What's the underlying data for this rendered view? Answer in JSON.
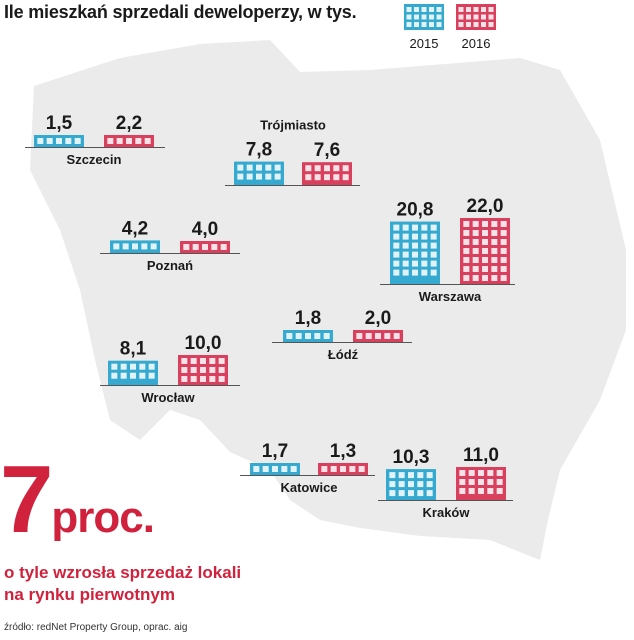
{
  "title": "Ile mieszkań sprzedali deweloperzy, w tys.",
  "colors": {
    "y2015": "#35a9cf",
    "y2016": "#d8405d",
    "map": "#ebebeb",
    "accent": "#d0223c",
    "text": "#1a1a1a"
  },
  "big_stat": {
    "number": "7",
    "unit": "proc.",
    "line1": "o tyle wzrosła sprzedaż lokali",
    "line2": "na rynku pierwotnym"
  },
  "source": "źródło: redNet Property Group, oprac. aig",
  "chart_data": {
    "type": "bar",
    "title": "Ile mieszkań sprzedali deweloperzy, w tys.",
    "unit": "tys. mieszkań",
    "legend": {
      "placement": "top-right",
      "entries": [
        "2015",
        "2016"
      ]
    },
    "categories": [
      "Szczecin",
      "Trójmiasto",
      "Warszawa",
      "Poznań",
      "Wrocław",
      "Łódź",
      "Katowice",
      "Kraków"
    ],
    "series": [
      {
        "name": "2015",
        "values": [
          1.5,
          7.8,
          20.8,
          4.2,
          8.1,
          1.8,
          1.7,
          10.3
        ]
      },
      {
        "name": "2016",
        "values": [
          2.2,
          7.6,
          22.0,
          4.0,
          10.0,
          2.0,
          1.3,
          11.0
        ]
      }
    ],
    "value_labels": {
      "2015": [
        "1,5",
        "7,8",
        "20,8",
        "4,2",
        "8,1",
        "1,8",
        "1,7",
        "10,3"
      ],
      "2016": [
        "2,2",
        "7,6",
        "22,0",
        "4,0",
        "10,0",
        "2,0",
        "1,3",
        "11,0"
      ]
    }
  }
}
